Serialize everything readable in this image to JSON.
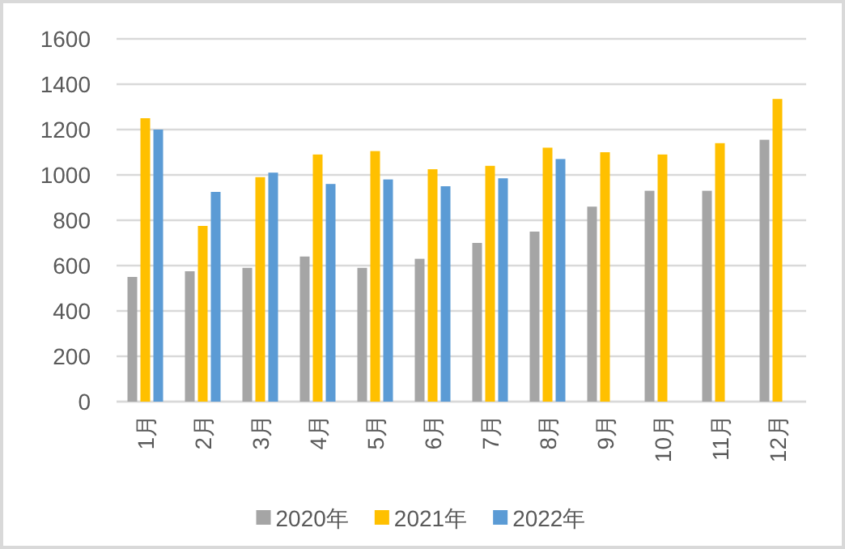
{
  "chart_data": {
    "type": "bar",
    "categories": [
      "1月",
      "2月",
      "3月",
      "4月",
      "5月",
      "6月",
      "7月",
      "8月",
      "9月",
      "10月",
      "11月",
      "12月"
    ],
    "series": [
      {
        "name": "2020年",
        "color": "#a5a5a5",
        "values": [
          550,
          575,
          590,
          640,
          590,
          630,
          700,
          750,
          860,
          930,
          930,
          1155
        ]
      },
      {
        "name": "2021年",
        "color": "#ffc000",
        "values": [
          1250,
          775,
          990,
          1090,
          1105,
          1025,
          1040,
          1120,
          1100,
          1090,
          1140,
          1335
        ]
      },
      {
        "name": "2022年",
        "color": "#5b9bd5",
        "values": [
          1200,
          925,
          1010,
          960,
          980,
          950,
          985,
          1070,
          null,
          null,
          null,
          null
        ]
      }
    ],
    "ylim": [
      0,
      1600
    ],
    "yticks": [
      0,
      200,
      400,
      600,
      800,
      1000,
      1200,
      1400,
      1600
    ],
    "grid": "y",
    "legend": "bottom"
  }
}
